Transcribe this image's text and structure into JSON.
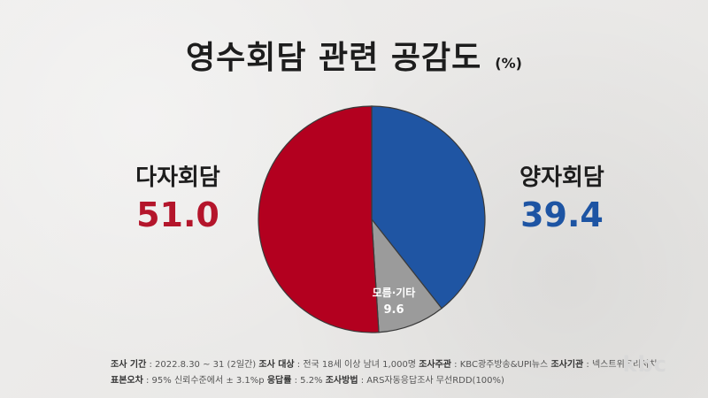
{
  "title": "영수회담 관련 공감도",
  "unit": "(%)",
  "chart_data": {
    "type": "pie",
    "title": "영수회담 관련 공감도",
    "unit": "(%)",
    "slices": [
      {
        "name": "양자회담",
        "value": 39.4,
        "color": "#1f55a3"
      },
      {
        "name": "모름·기타",
        "value": 9.6,
        "color": "#9b9b9b"
      },
      {
        "name": "다자회담",
        "value": 51.0,
        "color": "#b3001f"
      }
    ]
  },
  "labels": {
    "left": {
      "name": "다자회담",
      "value": "51.0"
    },
    "right": {
      "name": "양자회담",
      "value": "39.4"
    },
    "inner": {
      "name": "모름·기타",
      "value": "9.6"
    }
  },
  "footer": {
    "line1": [
      {
        "key": "조사 기간",
        "text": " : 2022.8.30 ~ 31 (2일간) "
      },
      {
        "key": "조사 대상",
        "text": " : 전국 18세 이상 남녀 1,000명 "
      },
      {
        "key": "조사주관",
        "text": " : KBC광주방송&UPI뉴스 "
      },
      {
        "key": "조사기관",
        "text": " : 넥스트위크리서치"
      }
    ],
    "line2": [
      {
        "key": "표본오차",
        "text": " : 95% 신뢰수준에서 ± 3.1%p "
      },
      {
        "key": "응답률",
        "text": " : 5.2% "
      },
      {
        "key": "조사방법",
        "text": " : ARS자동응답조사 무선RDD(100%)"
      }
    ]
  },
  "logo": "kbc"
}
